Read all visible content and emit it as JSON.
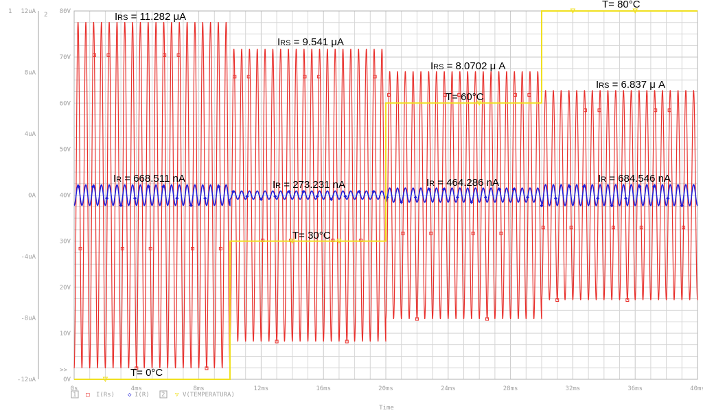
{
  "chart_data": {
    "type": "line",
    "xlabel": "Time",
    "x_ticks": [
      "0s",
      "4ms",
      "8ms",
      "12ms",
      "16ms",
      "20ms",
      "24ms",
      "28ms",
      "32ms",
      "36ms",
      "40ms"
    ],
    "x_range_ms": [
      0,
      40
    ],
    "y1_ticks": [
      "12uA",
      "8uA",
      "4uA",
      "0A",
      "-4uA",
      "-8uA",
      "-12uA"
    ],
    "y1_range_uA": [
      -12,
      12
    ],
    "y2_ticks": [
      "80V",
      "70V",
      "60V",
      "50V",
      "40V",
      "30V",
      "20V",
      "10V",
      "0V"
    ],
    "y2_range_V": [
      0,
      80
    ],
    "axis_numbers": {
      "axis1": "1",
      "axis2": "2"
    },
    "cursor_marker": ">>",
    "grid": true,
    "legend": {
      "items": [
        {
          "box": "1",
          "marker": "□",
          "label": "I(Rs)",
          "color": "#e8302c"
        },
        {
          "marker": "◇",
          "label": "I(R)",
          "color": "#2020d8"
        },
        {
          "box": "2",
          "marker": "▽",
          "label": "V(TEMPERATURA)",
          "color": "#f0e020"
        }
      ]
    },
    "series": [
      {
        "name": "I(Rs)",
        "color": "#e8302c",
        "axis": "y1",
        "unit": "uA",
        "frequency_kHz": 2,
        "segments": [
          {
            "t_start_ms": 0,
            "t_end_ms": 10,
            "max": 11.282,
            "min": -11.282
          },
          {
            "t_start_ms": 10,
            "t_end_ms": 20,
            "max": 9.541,
            "min": -9.541
          },
          {
            "t_start_ms": 20,
            "t_end_ms": 30,
            "max": 8.0702,
            "min": -8.0702
          },
          {
            "t_start_ms": 30,
            "t_end_ms": 40,
            "max": 6.837,
            "min": -6.837
          }
        ]
      },
      {
        "name": "I(R)",
        "color": "#2020d8",
        "axis": "y1",
        "unit": "uA",
        "frequency_kHz": 2,
        "segments": [
          {
            "t_start_ms": 0,
            "t_end_ms": 10,
            "amplitude": 0.6685
          },
          {
            "t_start_ms": 10,
            "t_end_ms": 20,
            "amplitude": 0.2732
          },
          {
            "t_start_ms": 20,
            "t_end_ms": 30,
            "amplitude": 0.4643
          },
          {
            "t_start_ms": 30,
            "t_end_ms": 40,
            "amplitude": 0.6845
          }
        ]
      },
      {
        "name": "V(TEMPERATURA)",
        "color": "#f0e020",
        "axis": "y2",
        "unit": "V",
        "steps": [
          {
            "t_start_ms": 0,
            "t_end_ms": 10,
            "value": 0
          },
          {
            "t_start_ms": 10,
            "t_end_ms": 20,
            "value": 30
          },
          {
            "t_start_ms": 20,
            "t_end_ms": 30,
            "value": 60
          },
          {
            "t_start_ms": 30,
            "t_end_ms": 40,
            "value": 80
          }
        ]
      }
    ],
    "annotations": {
      "irs": [
        {
          "main": "I",
          "sub": "RS",
          "value": " = 11.282 μA"
        },
        {
          "main": "I",
          "sub": "RS",
          "value": " = 9.541 μA"
        },
        {
          "main": "I",
          "sub": "RS",
          "value": " = 8.0702 μ A"
        },
        {
          "main": "I",
          "sub": "RS",
          "value": " = 6.837 μ A"
        }
      ],
      "ir": [
        {
          "main": "I",
          "sub": "R",
          "value": " = 668.511 nA"
        },
        {
          "main": "I",
          "sub": "R",
          "value": " = 273.231 nA"
        },
        {
          "main": "I",
          "sub": "R",
          "value": " = 464.286 nA"
        },
        {
          "main": "I",
          "sub": "R",
          "value": " = 684.546 nA"
        }
      ],
      "temps": [
        "T= 0°C",
        "T= 30°C",
        "T= 60°C",
        "T= 80°C"
      ]
    }
  }
}
